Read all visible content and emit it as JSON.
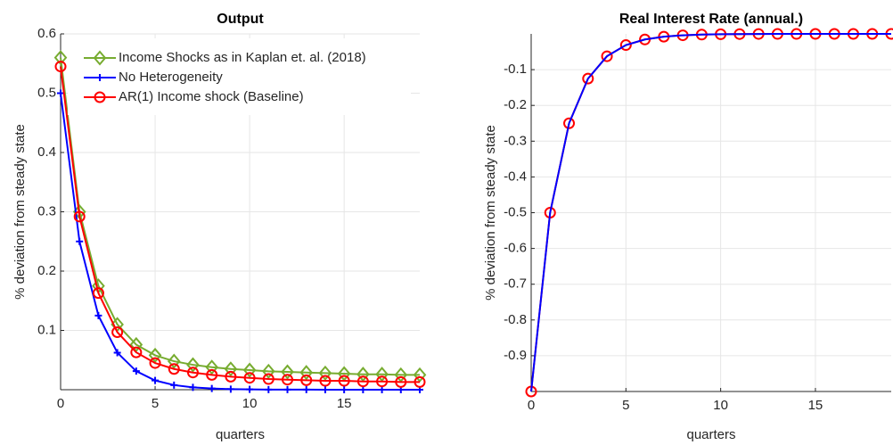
{
  "chart_data": [
    {
      "type": "line",
      "title": "Output",
      "x_label": "quarters",
      "y_label": "% deviation from steady state",
      "x": [
        0,
        1,
        2,
        3,
        4,
        5,
        6,
        7,
        8,
        9,
        10,
        11,
        12,
        13,
        14,
        15,
        16,
        17,
        18,
        19
      ],
      "xlim": [
        0,
        19
      ],
      "xticks": [
        0,
        5,
        10,
        15
      ],
      "ylim": [
        0,
        0.6
      ],
      "yticks": [
        0.1,
        0.2,
        0.3,
        0.4,
        0.5,
        0.6
      ],
      "grid": true,
      "legend": "northwest",
      "series": [
        {
          "name": "Income Shocks as in Kaplan et. al. (2018)",
          "color": "#77ac30",
          "marker": "diamond",
          "values": [
            0.56,
            0.3,
            0.175,
            0.11,
            0.076,
            0.058,
            0.048,
            0.042,
            0.038,
            0.035,
            0.033,
            0.031,
            0.03,
            0.029,
            0.028,
            0.027,
            0.026,
            0.026,
            0.025,
            0.025
          ]
        },
        {
          "name": "No Heterogeneity",
          "color": "#0000ff",
          "marker": "plus",
          "values": [
            0.5,
            0.25,
            0.125,
            0.0625,
            0.0313,
            0.0156,
            0.0078,
            0.0039,
            0.002,
            0.001,
            0.0005,
            0.0002,
            0.0001,
            0.0001,
            0,
            0,
            0,
            0,
            0,
            0
          ]
        },
        {
          "name": "AR(1) Income shock (Baseline)",
          "color": "#ff0000",
          "marker": "circle",
          "values": [
            0.545,
            0.292,
            0.163,
            0.097,
            0.063,
            0.045,
            0.035,
            0.029,
            0.025,
            0.022,
            0.02,
            0.018,
            0.017,
            0.016,
            0.015,
            0.015,
            0.014,
            0.014,
            0.013,
            0.013
          ]
        }
      ]
    },
    {
      "type": "line",
      "title": "Real Interest Rate (annual.)",
      "x_label": "quarters",
      "y_label": "% deviation from steady state",
      "x": [
        0,
        1,
        2,
        3,
        4,
        5,
        6,
        7,
        8,
        9,
        10,
        11,
        12,
        13,
        14,
        15,
        16,
        17,
        18,
        19
      ],
      "xlim": [
        0,
        19
      ],
      "xticks": [
        0,
        5,
        10,
        15
      ],
      "ylim": [
        -1,
        0
      ],
      "yticks": [
        -0.9,
        -0.8,
        -0.7,
        -0.6,
        -0.5,
        -0.4,
        -0.3,
        -0.2,
        -0.1
      ],
      "grid": true,
      "series": [
        {
          "color": "#ff0000",
          "marker": "circle",
          "values": [
            -1,
            -0.5,
            -0.25,
            -0.125,
            -0.0625,
            -0.0313,
            -0.0156,
            -0.0078,
            -0.0039,
            -0.002,
            -0.001,
            -0.0005,
            -0.0002,
            -0.0001,
            -0.0001,
            0,
            0,
            0,
            0,
            0
          ]
        },
        {
          "color": "#0000ff",
          "marker": "none",
          "values": [
            -1,
            -0.5,
            -0.25,
            -0.125,
            -0.0625,
            -0.0313,
            -0.0156,
            -0.0078,
            -0.0039,
            -0.002,
            -0.001,
            -0.0005,
            -0.0002,
            -0.0001,
            -0.0001,
            0,
            0,
            0,
            0,
            0
          ]
        }
      ]
    }
  ]
}
